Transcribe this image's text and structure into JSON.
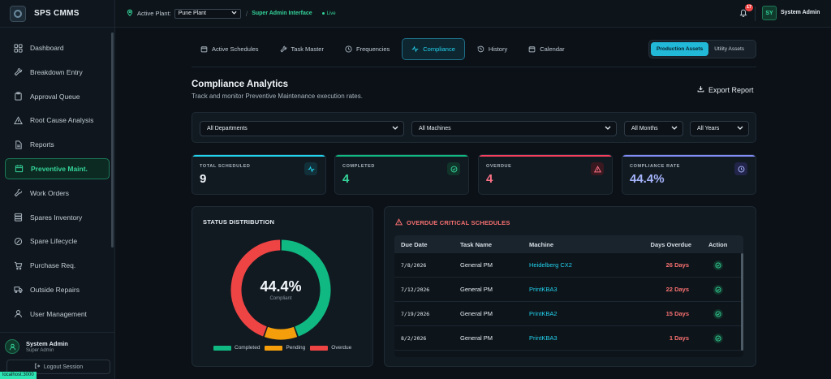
{
  "app": {
    "name": "SPS CMMS"
  },
  "sidebar": {
    "items": [
      {
        "label": "Dashboard",
        "icon": "grid-icon"
      },
      {
        "label": "Breakdown Entry",
        "icon": "wrench-icon"
      },
      {
        "label": "Approval Queue",
        "icon": "clipboard-icon"
      },
      {
        "label": "Root Cause Analysis",
        "icon": "alert-triangle-icon"
      },
      {
        "label": "Reports",
        "icon": "file-icon"
      },
      {
        "label": "Preventive Maint.",
        "icon": "calendar-check-icon",
        "active": true
      },
      {
        "label": "Work Orders",
        "icon": "tool-icon"
      },
      {
        "label": "Spares Inventory",
        "icon": "stack-icon"
      },
      {
        "label": "Spare Lifecycle",
        "icon": "cycle-icon"
      },
      {
        "label": "Purchase Req.",
        "icon": "cart-icon"
      },
      {
        "label": "Outside Repairs",
        "icon": "truck-icon"
      },
      {
        "label": "User Management",
        "icon": "user-icon"
      }
    ],
    "user": {
      "name": "System Admin",
      "role": "Super Admin"
    },
    "logout_label": "Logout Session",
    "status_url": "localhost:3000"
  },
  "topbar": {
    "plant_label": "Active Plant:",
    "plant_value": "Pune Plant",
    "separator": "/",
    "interface_label": "Super Admin Interface",
    "live_label": "Live",
    "notification_count": "17",
    "avatar_initials": "SY",
    "user_name": "System Admin"
  },
  "tabs": [
    {
      "label": "Active Schedules",
      "icon": "calendar-icon"
    },
    {
      "label": "Task Master",
      "icon": "wrench-icon"
    },
    {
      "label": "Frequencies",
      "icon": "clock-icon"
    },
    {
      "label": "Compliance",
      "icon": "activity-icon",
      "active": true
    },
    {
      "label": "History",
      "icon": "history-icon"
    },
    {
      "label": "Calendar",
      "icon": "calendar-icon"
    }
  ],
  "asset_toggle": {
    "production": "Production Assets",
    "utility": "Utility Assets",
    "selected": "production"
  },
  "page": {
    "title": "Compliance Analytics",
    "subtitle": "Track and monitor Preventive Maintenance execution rates.",
    "export_label": "Export Report"
  },
  "filters": {
    "department": "All Departments",
    "machine": "All Machines",
    "month": "All Months",
    "year": "All Years"
  },
  "kpis": [
    {
      "label": "TOTAL SCHEDULED",
      "value": "9",
      "color": "#22d3ee",
      "icon": "activity-icon"
    },
    {
      "label": "COMPLETED",
      "value": "4",
      "color": "#10b981",
      "icon": "check-circle-icon"
    },
    {
      "label": "OVERDUE",
      "value": "4",
      "color": "#f43f5e",
      "icon": "alert-triangle-icon"
    },
    {
      "label": "COMPLIANCE RATE",
      "value": "44.4%",
      "color": "#818cf8",
      "icon": "clock-icon"
    }
  ],
  "status_distribution": {
    "title": "STATUS DISTRIBUTION",
    "center_value": "44.4%",
    "center_label": "Compliant",
    "legend": [
      {
        "label": "Completed",
        "color": "#10b981"
      },
      {
        "label": "Pending",
        "color": "#f59e0b"
      },
      {
        "label": "Overdue",
        "color": "#ef4444"
      }
    ]
  },
  "chart_data": {
    "type": "pie",
    "categories": [
      "Completed",
      "Pending",
      "Overdue"
    ],
    "values": [
      4,
      1,
      4
    ],
    "colors": [
      "#10b981",
      "#f59e0b",
      "#ef4444"
    ],
    "title": "STATUS DISTRIBUTION"
  },
  "overdue": {
    "title": "OVERDUE CRITICAL SCHEDULES",
    "columns": [
      "Due Date",
      "Task Name",
      "Machine",
      "Days Overdue",
      "Action"
    ],
    "rows": [
      {
        "due": "7/8/2026",
        "task": "General PM",
        "machine": "Heidelberg CX2",
        "days": "26 Days"
      },
      {
        "due": "7/12/2026",
        "task": "General PM",
        "machine": "PrintKBA3",
        "days": "22 Days"
      },
      {
        "due": "7/19/2026",
        "task": "General PM",
        "machine": "PrintKBA2",
        "days": "15 Days"
      },
      {
        "due": "8/2/2026",
        "task": "General PM",
        "machine": "PrintKBA3",
        "days": "1 Days"
      }
    ]
  },
  "colors": {
    "accent_green": "#34d399",
    "accent_cyan": "#22d3ee",
    "danger": "#f87171"
  }
}
